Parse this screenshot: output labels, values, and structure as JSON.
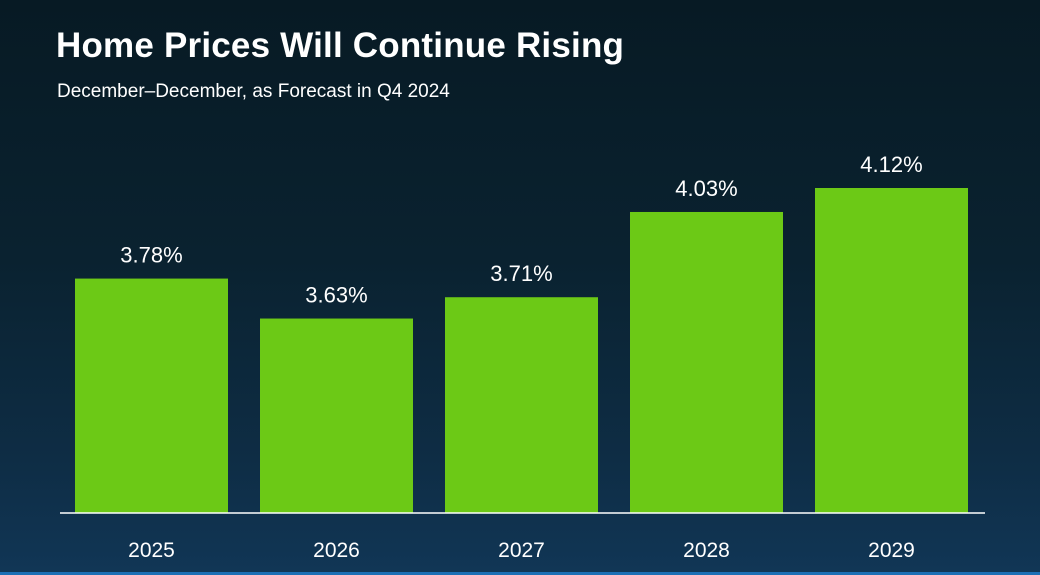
{
  "header": {
    "title": "Home Prices Will Continue Rising",
    "subtitle": "December–December, as Forecast in Q4 2024"
  },
  "colors": {
    "bar": "#6cc916",
    "axis": "#ffffff",
    "text": "#ffffff"
  },
  "chart_data": {
    "type": "bar",
    "title": "Home Prices Will Continue Rising",
    "subtitle": "December–December, as Forecast in Q4 2024",
    "categories": [
      "2025",
      "2026",
      "2027",
      "2028",
      "2029"
    ],
    "values": [
      3.78,
      3.63,
      3.71,
      4.03,
      4.12
    ],
    "data_labels": [
      "3.78%",
      "3.63%",
      "3.71%",
      "4.03%",
      "4.12%"
    ],
    "xlabel": "",
    "ylabel": "",
    "ylim": [
      2.9,
      4.12
    ],
    "grid": false,
    "legend": "none"
  }
}
